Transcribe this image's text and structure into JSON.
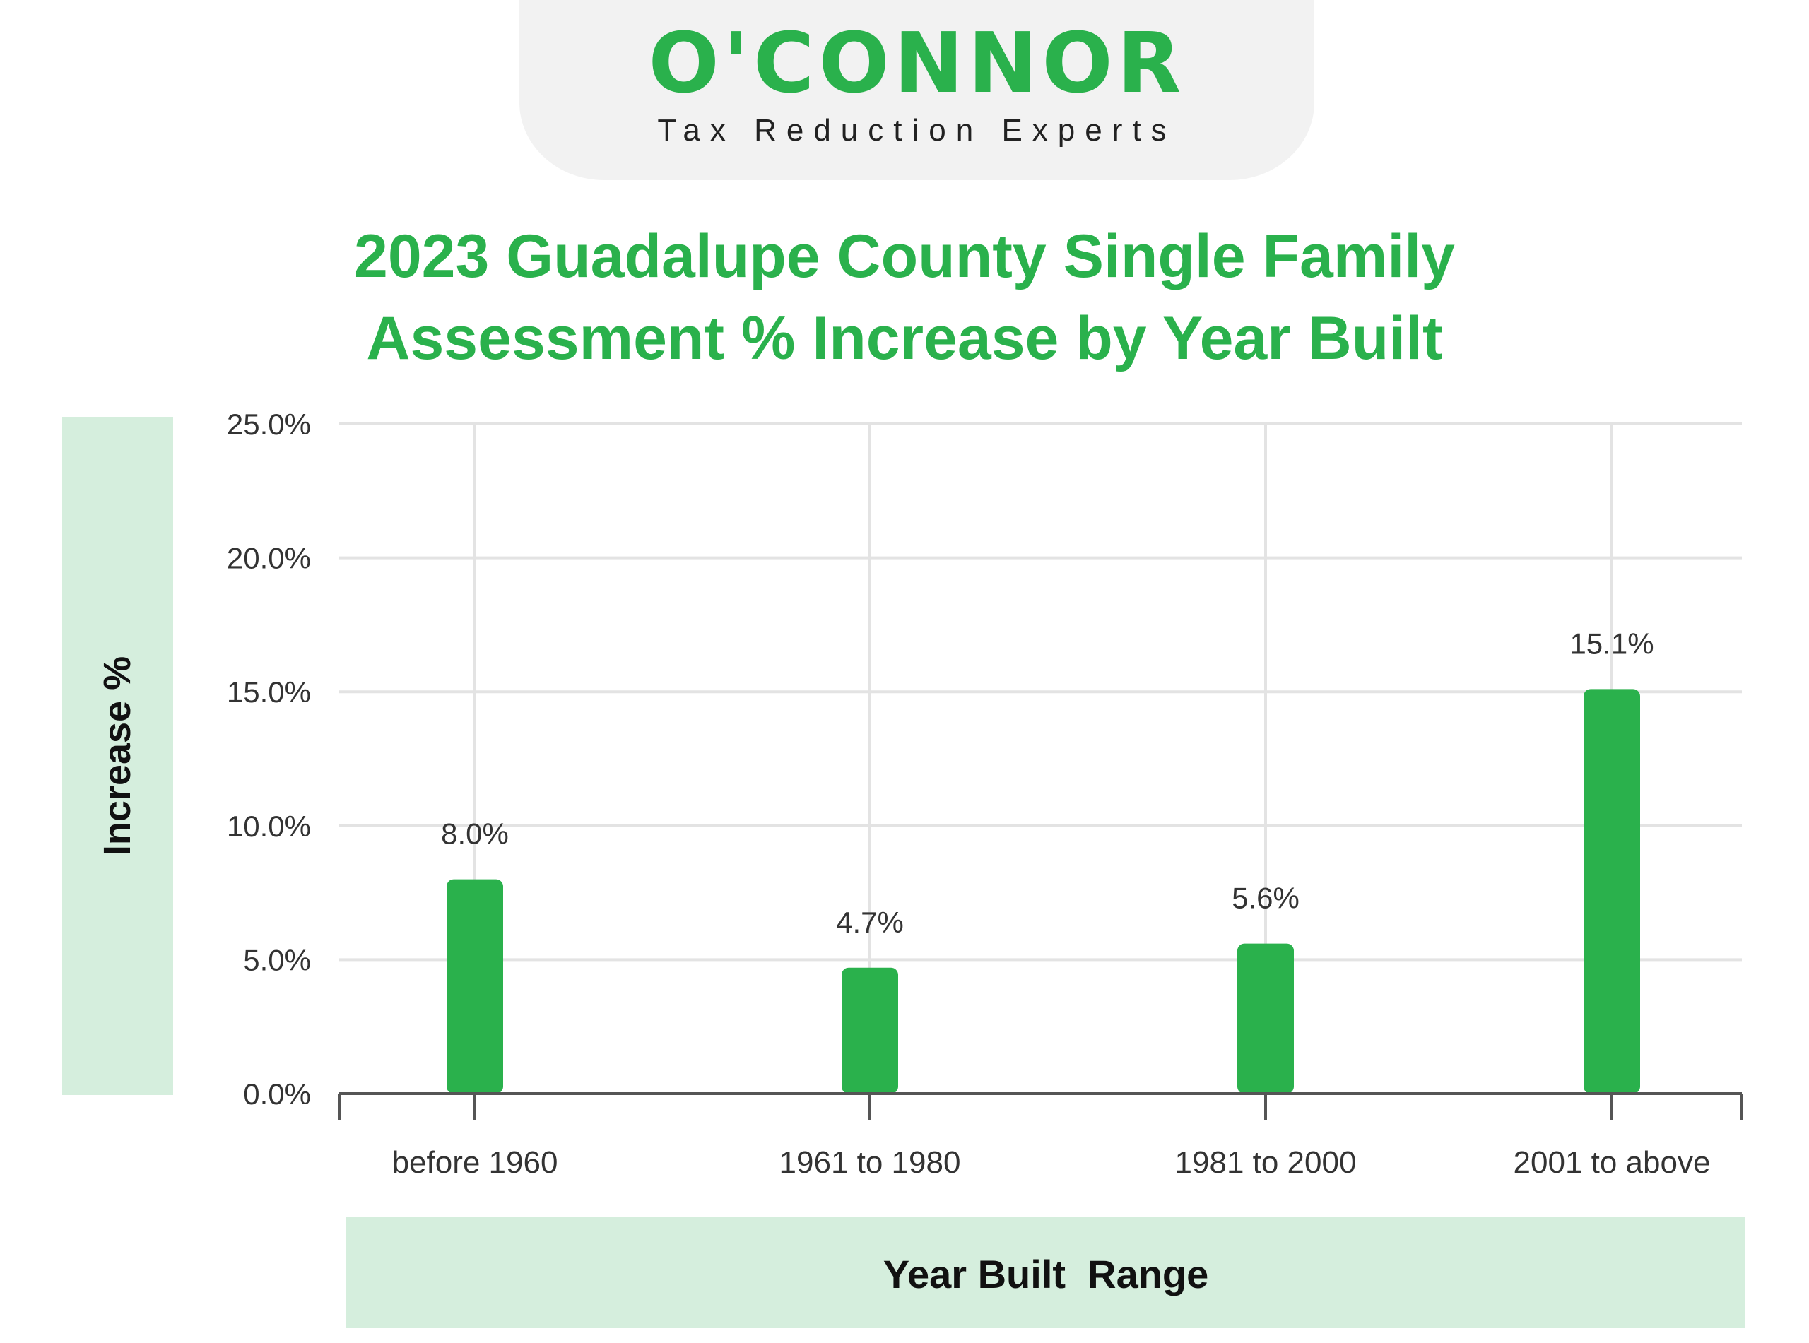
{
  "logo": {
    "brand": "O'CONNOR",
    "tagline": "Tax Reduction Experts"
  },
  "colors": {
    "accent": "#2ab14c",
    "panel": "#d5eedd",
    "grid": "#e3e3e3",
    "axis": "#555555"
  },
  "chart_data": {
    "type": "bar",
    "title": "2023 Guadalupe County Single Family Assessment % Increase by Year Built",
    "title_lines": [
      "2023 Guadalupe County Single Family",
      "Assessment % Increase by Year Built"
    ],
    "xlabel": "Year Built  Range",
    "ylabel": "Increase %",
    "categories": [
      "before 1960",
      "1961 to 1980",
      "1981 to 2000",
      "2001 to above"
    ],
    "values": [
      8.0,
      4.7,
      5.6,
      15.1
    ],
    "value_labels": [
      "8.0%",
      "4.7%",
      "5.6%",
      "15.1%"
    ],
    "ylim": [
      0,
      25
    ],
    "yticks": [
      0,
      5,
      10,
      15,
      20,
      25
    ],
    "ytick_labels": [
      "0.0%",
      "5.0%",
      "10.0%",
      "15.0%",
      "20.0%",
      "25.0%"
    ],
    "grid": true
  }
}
